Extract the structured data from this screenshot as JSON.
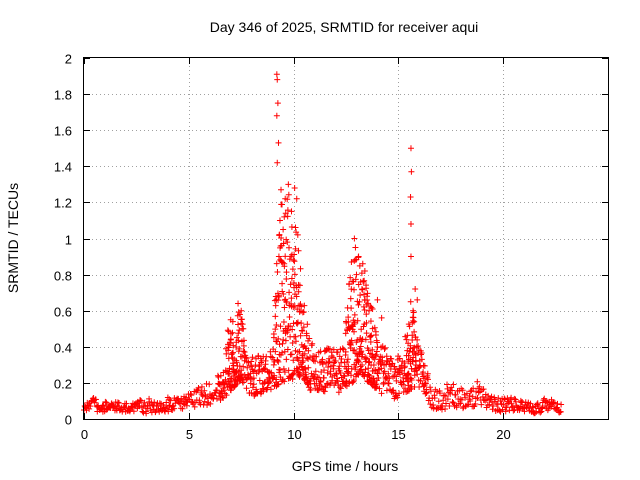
{
  "chart_data": {
    "type": "scatter",
    "title": "Day 346 of 2025, SRMTID for receiver aqui",
    "xlabel": "GPS time / hours",
    "ylabel": "SRMTID / TECUs",
    "xlim": [
      0,
      25
    ],
    "ylim": [
      0,
      2
    ],
    "xticks": [
      0,
      5,
      10,
      15,
      20
    ],
    "xtick_labels": [
      "0",
      "5",
      "10",
      "15",
      "20"
    ],
    "yticks": [
      0,
      0.2,
      0.4,
      0.6,
      0.8,
      1,
      1.2,
      1.4,
      1.6,
      1.8,
      2
    ],
    "ytick_labels": [
      "0",
      "0.2",
      "0.4",
      "0.6",
      "0.8",
      "1",
      "1.2",
      "1.4",
      "1.6",
      "1.8",
      "2"
    ],
    "grid": true,
    "marker": "plus",
    "series": [
      {
        "name": "SRMTID",
        "color": "#ff0000",
        "envelope": [
          [
            0.0,
            0.05,
            0.11
          ],
          [
            0.5,
            0.04,
            0.12
          ],
          [
            1.0,
            0.04,
            0.1
          ],
          [
            1.5,
            0.04,
            0.1
          ],
          [
            2.0,
            0.04,
            0.09
          ],
          [
            2.5,
            0.04,
            0.1
          ],
          [
            3.0,
            0.03,
            0.12
          ],
          [
            3.5,
            0.04,
            0.1
          ],
          [
            4.0,
            0.04,
            0.12
          ],
          [
            4.5,
            0.05,
            0.12
          ],
          [
            5.0,
            0.06,
            0.14
          ],
          [
            5.5,
            0.07,
            0.18
          ],
          [
            6.0,
            0.08,
            0.22
          ],
          [
            6.5,
            0.1,
            0.26
          ],
          [
            6.9,
            0.14,
            0.52
          ],
          [
            7.2,
            0.18,
            0.56
          ],
          [
            7.5,
            0.22,
            0.62
          ],
          [
            7.8,
            0.15,
            0.32
          ],
          [
            8.2,
            0.12,
            0.36
          ],
          [
            8.6,
            0.14,
            0.35
          ],
          [
            9.0,
            0.16,
            0.4
          ],
          [
            9.4,
            0.2,
            1.3
          ],
          [
            9.8,
            0.22,
            1.25
          ],
          [
            10.1,
            0.22,
            1.2
          ],
          [
            10.4,
            0.24,
            0.7
          ],
          [
            10.8,
            0.16,
            0.42
          ],
          [
            11.2,
            0.16,
            0.42
          ],
          [
            11.6,
            0.15,
            0.4
          ],
          [
            12.0,
            0.14,
            0.38
          ],
          [
            12.4,
            0.16,
            0.4
          ],
          [
            12.8,
            0.2,
            0.96
          ],
          [
            13.2,
            0.26,
            0.88
          ],
          [
            13.6,
            0.2,
            0.7
          ],
          [
            14.0,
            0.16,
            0.5
          ],
          [
            14.4,
            0.12,
            0.4
          ],
          [
            14.8,
            0.1,
            0.35
          ],
          [
            15.2,
            0.14,
            0.36
          ],
          [
            15.6,
            0.16,
            0.7
          ],
          [
            15.9,
            0.18,
            0.45
          ],
          [
            16.2,
            0.16,
            0.36
          ],
          [
            16.6,
            0.06,
            0.16
          ],
          [
            17.0,
            0.05,
            0.18
          ],
          [
            17.5,
            0.06,
            0.2
          ],
          [
            18.0,
            0.06,
            0.18
          ],
          [
            18.5,
            0.06,
            0.16
          ],
          [
            18.8,
            0.08,
            0.24
          ],
          [
            19.2,
            0.05,
            0.14
          ],
          [
            19.6,
            0.04,
            0.12
          ],
          [
            20.0,
            0.04,
            0.12
          ],
          [
            20.5,
            0.04,
            0.12
          ],
          [
            21.0,
            0.04,
            0.1
          ],
          [
            21.5,
            0.03,
            0.08
          ],
          [
            22.0,
            0.04,
            0.12
          ],
          [
            22.5,
            0.04,
            0.1
          ],
          [
            22.8,
            0.03,
            0.08
          ]
        ],
        "peaks": [
          [
            9.2,
            1.91
          ],
          [
            9.22,
            1.88
          ],
          [
            9.25,
            1.75
          ],
          [
            9.2,
            1.68
          ],
          [
            9.28,
            1.53
          ],
          [
            9.22,
            1.42
          ],
          [
            9.4,
            1.27
          ],
          [
            9.6,
            1.22
          ],
          [
            9.75,
            1.3
          ],
          [
            10.05,
            1.28
          ],
          [
            10.15,
            1.22
          ],
          [
            9.35,
            1.1
          ],
          [
            9.5,
            1.05
          ],
          [
            9.9,
            1.15
          ],
          [
            10.2,
            1.02
          ],
          [
            9.7,
            0.98
          ],
          [
            9.3,
            0.9
          ],
          [
            9.55,
            0.86
          ],
          [
            10.0,
            0.88
          ],
          [
            9.45,
            0.75
          ],
          [
            10.3,
            0.74
          ],
          [
            12.9,
            1.0
          ],
          [
            12.95,
            0.95
          ],
          [
            13.1,
            0.9
          ],
          [
            13.3,
            0.86
          ],
          [
            13.0,
            0.8
          ],
          [
            13.4,
            0.82
          ],
          [
            13.2,
            0.76
          ],
          [
            14.0,
            0.66
          ],
          [
            14.2,
            0.56
          ],
          [
            13.6,
            0.6
          ],
          [
            15.6,
            1.5
          ],
          [
            15.62,
            1.37
          ],
          [
            15.58,
            1.23
          ],
          [
            15.6,
            1.08
          ],
          [
            15.6,
            0.9
          ],
          [
            15.8,
            0.72
          ],
          [
            15.9,
            0.66
          ],
          [
            15.7,
            0.6
          ],
          [
            7.35,
            0.64
          ],
          [
            7.5,
            0.6
          ],
          [
            7.0,
            0.55
          ],
          [
            7.6,
            0.5
          ]
        ]
      }
    ]
  }
}
